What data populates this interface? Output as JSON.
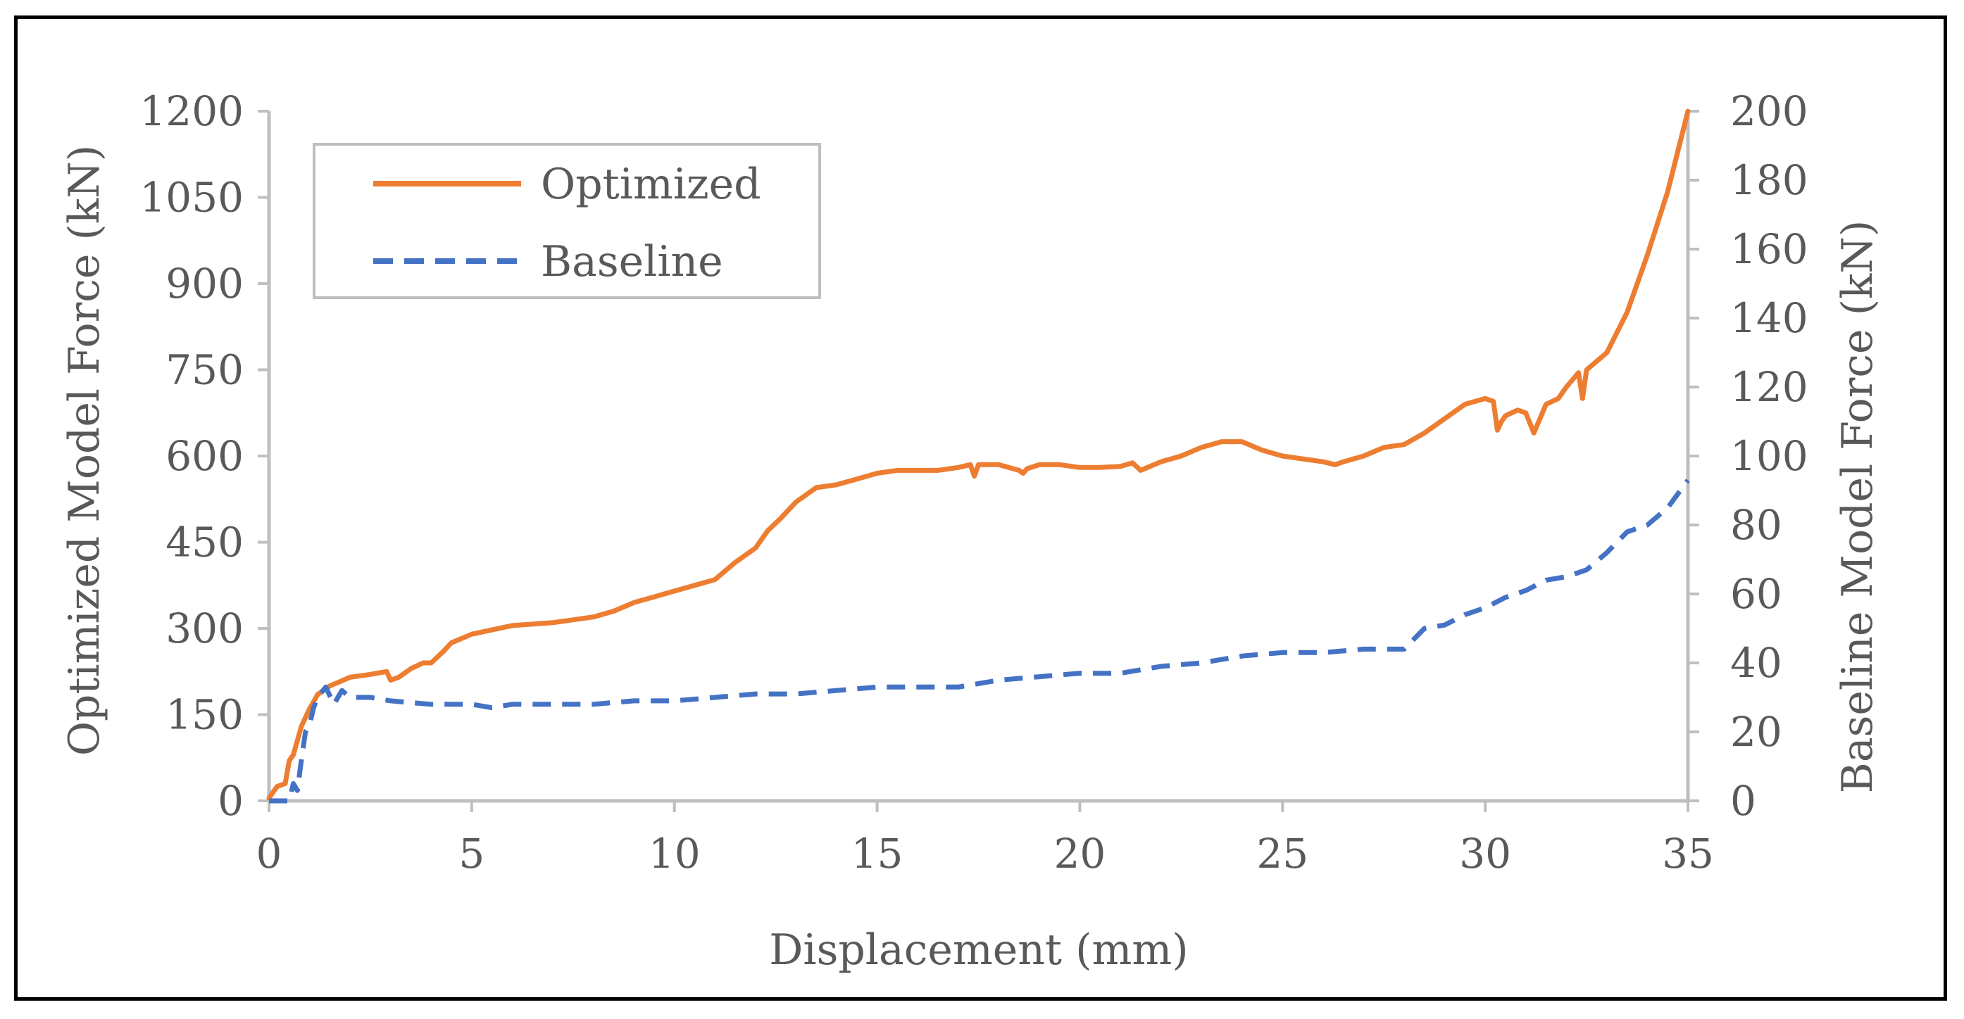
{
  "chart_data": {
    "type": "line",
    "title": "",
    "xlabel": "Displacement (mm)",
    "ylabel": "Optimized Model Force (kN)",
    "y2label": "Baseline Model Force (kN)",
    "xlim": [
      0,
      35
    ],
    "ylim": [
      0,
      1200
    ],
    "y2lim": [
      0,
      200
    ],
    "xticks": [
      0,
      5,
      10,
      15,
      20,
      25,
      30,
      35
    ],
    "yticks": [
      0,
      150,
      300,
      450,
      600,
      750,
      900,
      1050,
      1200
    ],
    "y2ticks": [
      0,
      20,
      40,
      60,
      80,
      100,
      120,
      140,
      160,
      180,
      200
    ],
    "grid": false,
    "legend_position": "top-left",
    "series": [
      {
        "name": "Optimized",
        "axis": "left",
        "color": "#ED7D31",
        "style": "solid",
        "x": [
          0,
          0.2,
          0.4,
          0.5,
          0.6,
          0.8,
          0.9,
          1.0,
          1.2,
          1.5,
          2.0,
          2.5,
          2.9,
          3.0,
          3.2,
          3.5,
          3.8,
          4.0,
          4.3,
          4.5,
          5,
          6,
          7,
          8,
          8.5,
          9,
          9.5,
          10,
          10.5,
          11,
          11.5,
          12,
          12.3,
          12.6,
          13,
          13.5,
          14,
          14.5,
          15,
          15.5,
          16,
          16.5,
          17,
          17.3,
          17.4,
          17.5,
          18,
          18.5,
          18.6,
          18.7,
          19,
          19.5,
          20,
          20.5,
          21,
          21.3,
          21.5,
          22,
          22.5,
          23,
          23.5,
          24,
          24.5,
          25,
          25.5,
          26,
          26.3,
          26.5,
          27,
          27.5,
          28,
          28.5,
          29,
          29.5,
          30,
          30.2,
          30.3,
          30.4,
          30.5,
          30.8,
          31,
          31.2,
          31.5,
          31.8,
          32,
          32.3,
          32.4,
          32.5,
          33,
          33.5,
          34,
          34.5,
          35
        ],
        "values": [
          5,
          25,
          30,
          70,
          80,
          130,
          145,
          160,
          185,
          200,
          215,
          220,
          225,
          210,
          215,
          230,
          240,
          240,
          260,
          275,
          290,
          305,
          310,
          320,
          330,
          345,
          355,
          365,
          375,
          385,
          415,
          440,
          470,
          490,
          520,
          545,
          550,
          560,
          570,
          575,
          575,
          575,
          580,
          585,
          565,
          585,
          585,
          575,
          570,
          578,
          585,
          585,
          580,
          580,
          582,
          588,
          575,
          590,
          600,
          615,
          625,
          625,
          610,
          600,
          595,
          590,
          585,
          590,
          600,
          615,
          620,
          640,
          665,
          690,
          700,
          695,
          645,
          660,
          670,
          680,
          675,
          640,
          690,
          700,
          720,
          745,
          700,
          750,
          780,
          850,
          950,
          1060,
          1200
        ]
      },
      {
        "name": "Baseline",
        "axis": "right",
        "color": "#4472C4",
        "style": "dashed",
        "x": [
          0,
          0.3,
          0.5,
          0.6,
          0.7,
          0.8,
          0.9,
          1.0,
          1.1,
          1.2,
          1.4,
          1.6,
          1.8,
          2,
          2.5,
          3,
          4,
          5,
          5.5,
          6,
          7,
          8,
          9,
          10,
          11,
          12,
          13,
          14,
          15,
          16,
          17,
          18,
          19,
          20,
          21,
          22,
          23,
          24,
          25,
          25.5,
          26,
          27,
          28,
          28.5,
          29,
          29.5,
          30,
          30.5,
          31,
          31.5,
          32,
          32.5,
          33,
          33.5,
          34,
          34.5,
          35
        ],
        "values": [
          0,
          0,
          0,
          5,
          3,
          12,
          20,
          22,
          27,
          30,
          33,
          28,
          32,
          30,
          30,
          29,
          28,
          28,
          27,
          28,
          28,
          28,
          29,
          29,
          30,
          31,
          31,
          32,
          33,
          33,
          33,
          35,
          36,
          37,
          37,
          39,
          40,
          42,
          43,
          43,
          43,
          44,
          44,
          50,
          51,
          54,
          56,
          59,
          61,
          64,
          65,
          67,
          72,
          78,
          80,
          85,
          93
        ]
      }
    ]
  }
}
